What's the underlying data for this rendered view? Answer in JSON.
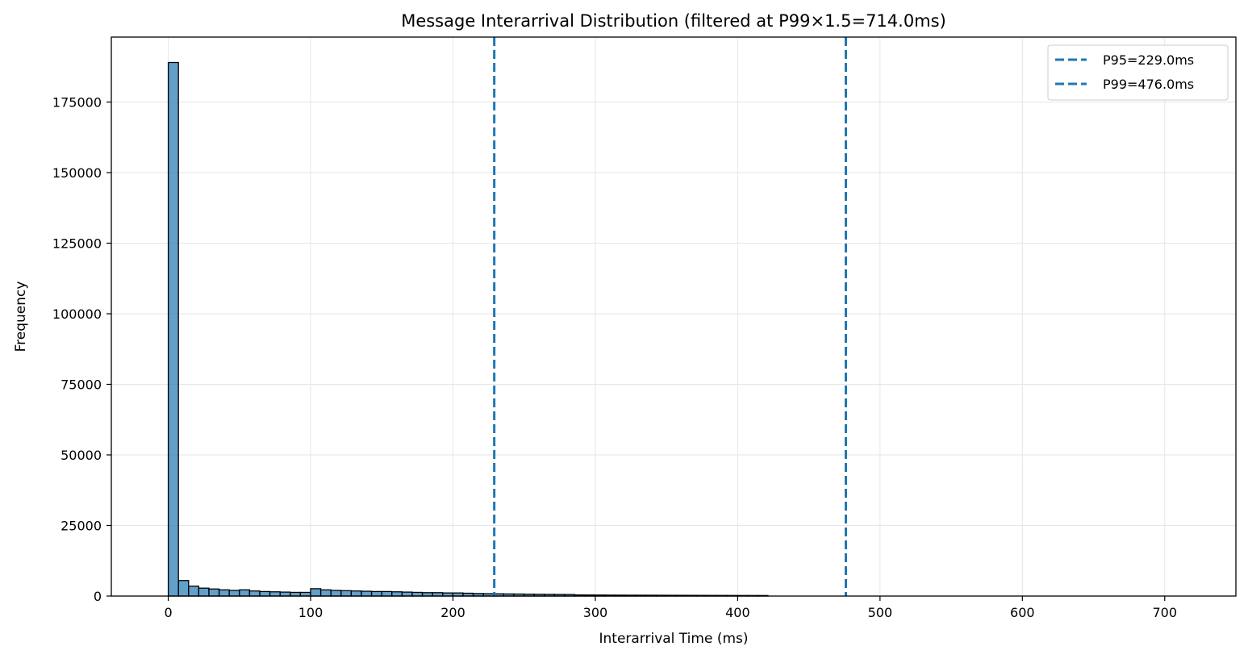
{
  "chart_data": {
    "type": "bar",
    "title": "Message Interarrival Distribution (filtered at P99×1.5=714.0ms)",
    "xlabel": "Interarrival Time (ms)",
    "ylabel": "Frequency",
    "xlim": [
      -40,
      750
    ],
    "ylim": [
      0,
      198000
    ],
    "x_ticks": [
      0,
      100,
      200,
      300,
      400,
      500,
      600,
      700
    ],
    "y_ticks": [
      0,
      25000,
      50000,
      75000,
      100000,
      125000,
      150000,
      175000
    ],
    "grid": true,
    "legend_position": "top-right",
    "bin_width": 7.14,
    "bin_start": 0,
    "bar_color": "#1f77b4",
    "bar_edge_color": "#000000",
    "bin_counts": [
      189000,
      5500,
      3500,
      2800,
      2500,
      2200,
      2000,
      2200,
      1800,
      1600,
      1500,
      1400,
      1300,
      1300,
      2600,
      2200,
      2000,
      1900,
      1800,
      1700,
      1600,
      1600,
      1500,
      1400,
      1300,
      1200,
      1200,
      1100,
      1100,
      1000,
      900,
      850,
      800,
      750,
      720,
      680,
      640,
      610,
      580,
      550,
      400,
      380,
      360,
      340,
      320,
      310,
      300,
      290,
      280,
      270,
      260,
      250,
      240,
      230,
      220,
      210,
      200,
      195,
      190
    ],
    "reference_lines": [
      {
        "name": "P95=229.0ms",
        "x": 229.0,
        "color": "#1f77b4",
        "style": "dashed"
      },
      {
        "name": "P99=476.0ms",
        "x": 476.0,
        "color": "#1f77b4",
        "style": "dashed"
      }
    ]
  }
}
